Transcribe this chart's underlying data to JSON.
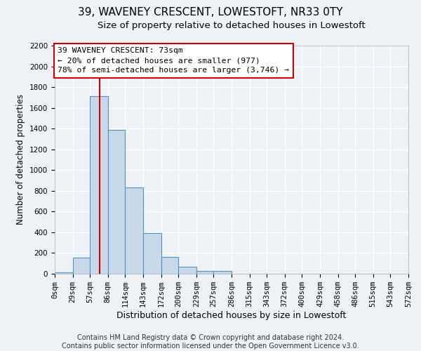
{
  "title": "39, WAVENEY CRESCENT, LOWESTOFT, NR33 0TY",
  "subtitle": "Size of property relative to detached houses in Lowestoft",
  "xlabel": "Distribution of detached houses by size in Lowestoft",
  "ylabel": "Number of detached properties",
  "bin_edges": [
    0,
    29,
    57,
    86,
    114,
    143,
    172,
    200,
    229,
    257,
    286,
    315,
    343,
    372,
    400,
    429,
    458,
    486,
    515,
    543,
    572
  ],
  "bar_heights": [
    15,
    155,
    1710,
    1390,
    830,
    390,
    160,
    65,
    30,
    25,
    0,
    0,
    0,
    0,
    0,
    0,
    0,
    0,
    0,
    0
  ],
  "bar_color": "#c8d8e8",
  "bar_edgecolor": "#5090c0",
  "vline_color": "#cc0000",
  "vline_x": 73,
  "annotation_line1": "39 WAVENEY CRESCENT: 73sqm",
  "annotation_line2": "← 20% of detached houses are smaller (977)",
  "annotation_line3": "78% of semi-detached houses are larger (3,746) →",
  "annotation_box_edgecolor": "#cc0000",
  "annotation_box_facecolor": "#ffffff",
  "ylim": [
    0,
    2200
  ],
  "yticks": [
    0,
    200,
    400,
    600,
    800,
    1000,
    1200,
    1400,
    1600,
    1800,
    2000,
    2200
  ],
  "xtick_labels": [
    "0sqm",
    "29sqm",
    "57sqm",
    "86sqm",
    "114sqm",
    "143sqm",
    "172sqm",
    "200sqm",
    "229sqm",
    "257sqm",
    "286sqm",
    "315sqm",
    "343sqm",
    "372sqm",
    "400sqm",
    "429sqm",
    "458sqm",
    "486sqm",
    "515sqm",
    "543sqm",
    "572sqm"
  ],
  "footer_line1": "Contains HM Land Registry data © Crown copyright and database right 2024.",
  "footer_line2": "Contains public sector information licensed under the Open Government Licence v3.0.",
  "background_color": "#eef2f6",
  "grid_color": "#ffffff",
  "title_fontsize": 11,
  "subtitle_fontsize": 9.5,
  "xlabel_fontsize": 9,
  "ylabel_fontsize": 8.5,
  "footer_fontsize": 7,
  "tick_fontsize": 7.5
}
